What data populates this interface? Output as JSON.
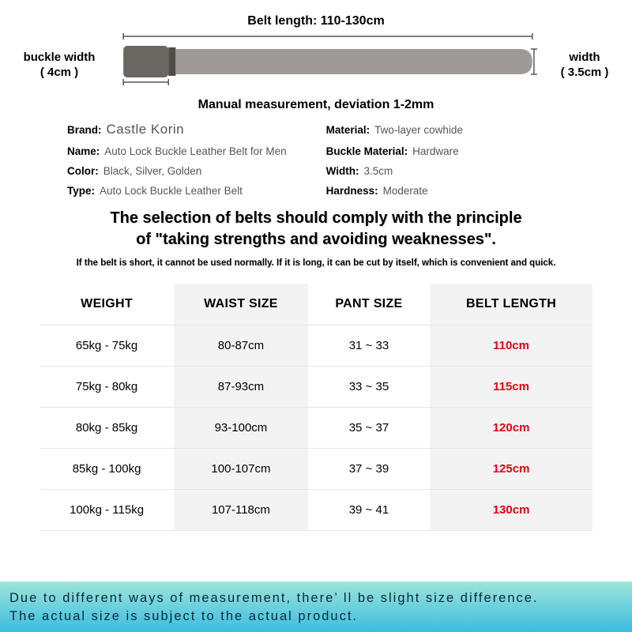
{
  "diagram": {
    "belt_length_label": "Belt length: 110-130cm",
    "buckle_width_label": "buckle width",
    "buckle_width_value": "( 4cm )",
    "width_label": "width",
    "width_value": "( 3.5cm )",
    "manual_note": "Manual measurement, deviation 1-2mm",
    "buckle_color": "#6a6762",
    "strap_color": "#9f9a95",
    "line_color": "#333333"
  },
  "specs": {
    "left": [
      {
        "label": "Brand:",
        "value": "Castle Korin",
        "is_brand": true
      },
      {
        "label": "Name:",
        "value": "Auto Lock Buckle Leather Belt for Men"
      },
      {
        "label": "Color:",
        "value": "Black, Silver, Golden"
      },
      {
        "label": "Type:",
        "value": "Auto Lock Buckle Leather Belt"
      }
    ],
    "right": [
      {
        "label": "Material:",
        "value": "Two-layer cowhide"
      },
      {
        "label": "Buckle Material:",
        "value": "Hardware"
      },
      {
        "label": "Width:",
        "value": "3.5cm"
      },
      {
        "label": "Hardness:",
        "value": "Moderate"
      }
    ]
  },
  "principle": {
    "title_line1": "The selection of belts should comply with the principle",
    "title_line2": "of \"taking strengths and avoiding weaknesses\".",
    "subtitle": "If the belt is short, it cannot be used normally. If it is long, it can be cut by itself, which is convenient and quick."
  },
  "table": {
    "columns": [
      "WEIGHT",
      "WAIST SIZE",
      "PANT SIZE",
      "BELT LENGTH"
    ],
    "shaded_cols": [
      1,
      3
    ],
    "highlight_col": 3,
    "rows": [
      [
        "65kg - 75kg",
        "80-87cm",
        "31 ~ 33",
        "110cm"
      ],
      [
        "75kg - 80kg",
        "87-93cm",
        "33 ~ 35",
        "115cm"
      ],
      [
        "80kg - 85kg",
        "93-100cm",
        "35 ~ 37",
        "120cm"
      ],
      [
        "85kg - 100kg",
        "100-107cm",
        "37 ~ 39",
        "125cm"
      ],
      [
        "100kg - 115kg",
        "107-118cm",
        "39 ~ 41",
        "130cm"
      ]
    ]
  },
  "footer": {
    "line1": "Due to different ways of measurement, there’ ll be slight  size difference.",
    "line2": "The actual size is  subject to the actual product."
  }
}
